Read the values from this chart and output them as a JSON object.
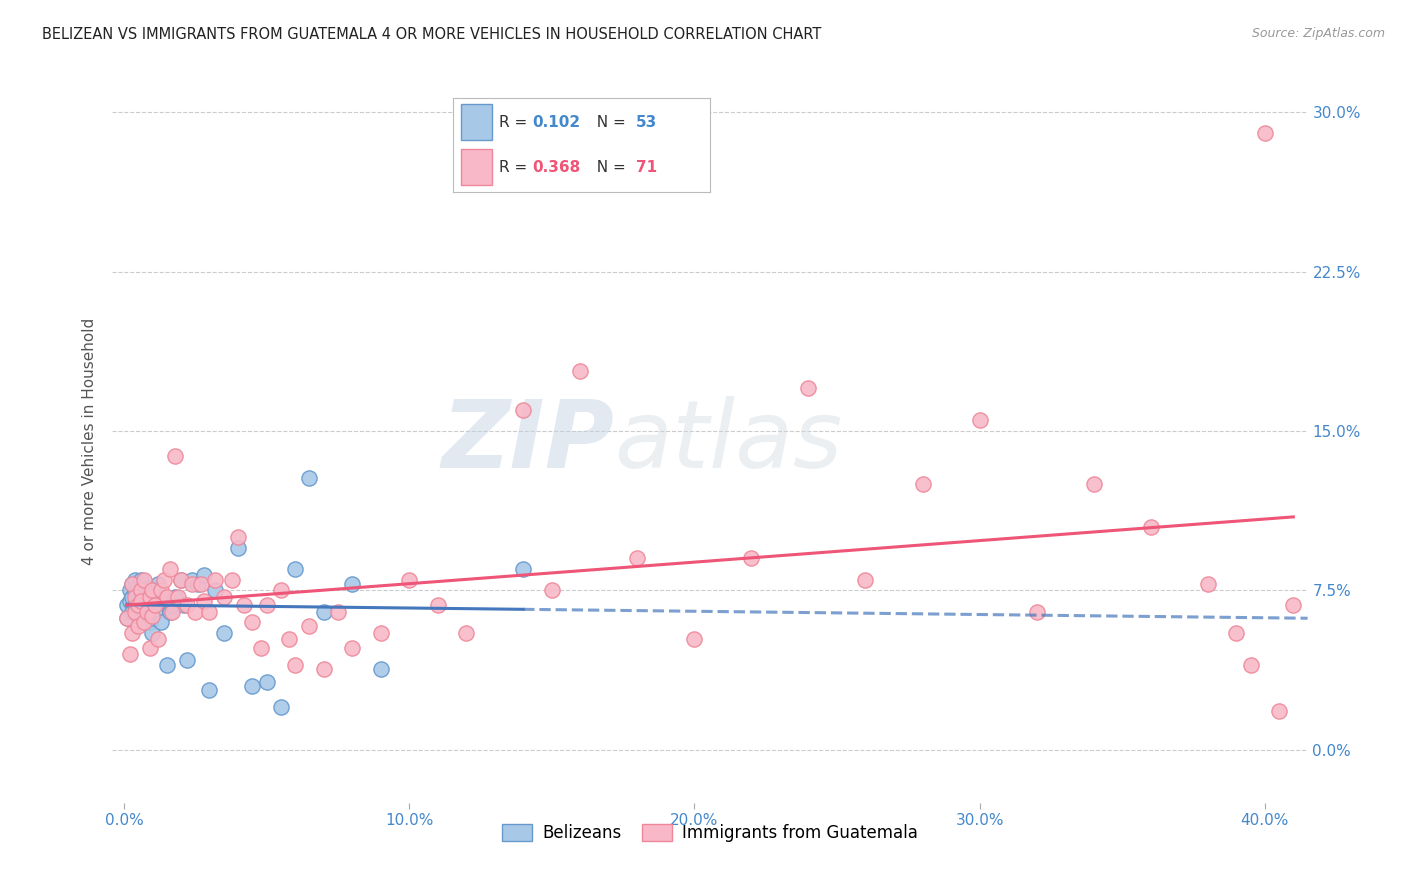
{
  "title": "BELIZEAN VS IMMIGRANTS FROM GUATEMALA 4 OR MORE VEHICLES IN HOUSEHOLD CORRELATION CHART",
  "source": "Source: ZipAtlas.com",
  "ylabel": "4 or more Vehicles in Household",
  "xlabel_ticks": [
    "0.0%",
    "10.0%",
    "20.0%",
    "30.0%",
    "40.0%"
  ],
  "xlabel_vals": [
    0.0,
    0.1,
    0.2,
    0.3,
    0.4
  ],
  "ylabel_ticks_right": [
    "30.0%",
    "22.5%",
    "15.0%",
    "7.5%",
    "0.0%"
  ],
  "ylabel_vals": [
    0.3,
    0.225,
    0.15,
    0.075,
    0.0
  ],
  "xlim": [
    -0.004,
    0.415
  ],
  "ylim": [
    -0.025,
    0.315
  ],
  "belizean_R": 0.102,
  "belizean_N": 53,
  "guatemalan_R": 0.368,
  "guatemalan_N": 71,
  "legend_label1": "Belizeans",
  "legend_label2": "Immigrants from Guatemala",
  "blue_fill": "#A8C8E8",
  "blue_edge": "#6699CC",
  "pink_fill": "#F8B8C8",
  "pink_edge": "#EE8899",
  "blue_line_color": "#4477BB",
  "pink_line_color": "#EE5577",
  "watermark_zip": "ZIP",
  "watermark_atlas": "atlas",
  "background_color": "#ffffff",
  "grid_color": "#cccccc",
  "belizean_x": [
    0.001,
    0.001,
    0.002,
    0.002,
    0.003,
    0.003,
    0.003,
    0.004,
    0.004,
    0.004,
    0.005,
    0.005,
    0.005,
    0.006,
    0.006,
    0.006,
    0.007,
    0.007,
    0.007,
    0.008,
    0.008,
    0.009,
    0.009,
    0.01,
    0.01,
    0.011,
    0.011,
    0.012,
    0.013,
    0.014,
    0.015,
    0.016,
    0.017,
    0.018,
    0.02,
    0.021,
    0.022,
    0.024,
    0.026,
    0.028,
    0.03,
    0.032,
    0.035,
    0.04,
    0.045,
    0.05,
    0.055,
    0.06,
    0.065,
    0.07,
    0.08,
    0.09,
    0.14
  ],
  "belizean_y": [
    0.062,
    0.068,
    0.07,
    0.075,
    0.072,
    0.078,
    0.065,
    0.074,
    0.068,
    0.08,
    0.063,
    0.071,
    0.077,
    0.074,
    0.068,
    0.08,
    0.073,
    0.065,
    0.075,
    0.072,
    0.068,
    0.06,
    0.076,
    0.055,
    0.07,
    0.075,
    0.065,
    0.078,
    0.06,
    0.07,
    0.04,
    0.065,
    0.068,
    0.072,
    0.08,
    0.068,
    0.042,
    0.08,
    0.078,
    0.082,
    0.028,
    0.075,
    0.055,
    0.095,
    0.03,
    0.032,
    0.02,
    0.085,
    0.128,
    0.065,
    0.078,
    0.038,
    0.085
  ],
  "guatemalan_x": [
    0.001,
    0.002,
    0.003,
    0.003,
    0.004,
    0.004,
    0.005,
    0.005,
    0.006,
    0.006,
    0.007,
    0.007,
    0.008,
    0.009,
    0.009,
    0.01,
    0.01,
    0.011,
    0.012,
    0.013,
    0.014,
    0.015,
    0.016,
    0.017,
    0.018,
    0.019,
    0.02,
    0.022,
    0.024,
    0.025,
    0.027,
    0.028,
    0.03,
    0.032,
    0.035,
    0.038,
    0.04,
    0.042,
    0.045,
    0.048,
    0.05,
    0.055,
    0.058,
    0.06,
    0.065,
    0.07,
    0.075,
    0.08,
    0.09,
    0.1,
    0.11,
    0.12,
    0.14,
    0.15,
    0.16,
    0.18,
    0.2,
    0.22,
    0.24,
    0.26,
    0.28,
    0.3,
    0.32,
    0.34,
    0.36,
    0.38,
    0.39,
    0.395,
    0.4,
    0.405,
    0.41
  ],
  "guatemalan_y": [
    0.062,
    0.045,
    0.078,
    0.055,
    0.072,
    0.065,
    0.068,
    0.058,
    0.075,
    0.07,
    0.06,
    0.08,
    0.065,
    0.072,
    0.048,
    0.075,
    0.063,
    0.068,
    0.052,
    0.075,
    0.08,
    0.072,
    0.085,
    0.065,
    0.138,
    0.072,
    0.08,
    0.068,
    0.078,
    0.065,
    0.078,
    0.07,
    0.065,
    0.08,
    0.072,
    0.08,
    0.1,
    0.068,
    0.06,
    0.048,
    0.068,
    0.075,
    0.052,
    0.04,
    0.058,
    0.038,
    0.065,
    0.048,
    0.055,
    0.08,
    0.068,
    0.055,
    0.16,
    0.075,
    0.178,
    0.09,
    0.052,
    0.09,
    0.17,
    0.08,
    0.125,
    0.155,
    0.065,
    0.125,
    0.105,
    0.078,
    0.055,
    0.04,
    0.29,
    0.018,
    0.068
  ]
}
